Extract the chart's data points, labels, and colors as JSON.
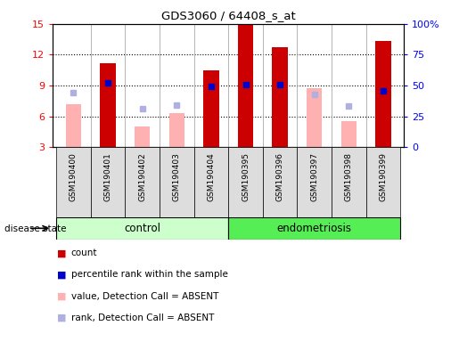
{
  "title": "GDS3060 / 64408_s_at",
  "samples": [
    "GSM190400",
    "GSM190401",
    "GSM190402",
    "GSM190403",
    "GSM190404",
    "GSM190395",
    "GSM190396",
    "GSM190397",
    "GSM190398",
    "GSM190399"
  ],
  "groups": [
    "control",
    "control",
    "control",
    "control",
    "control",
    "endometriosis",
    "endometriosis",
    "endometriosis",
    "endometriosis",
    "endometriosis"
  ],
  "count_values": [
    null,
    11.2,
    null,
    null,
    10.5,
    14.9,
    12.7,
    null,
    null,
    13.3
  ],
  "count_absent_values": [
    7.2,
    null,
    5.0,
    6.3,
    null,
    null,
    null,
    8.7,
    5.5,
    null
  ],
  "percentile_rank": [
    null,
    9.3,
    null,
    null,
    8.9,
    9.1,
    9.1,
    null,
    null,
    8.5
  ],
  "rank_absent": [
    8.3,
    null,
    6.7,
    7.1,
    null,
    null,
    null,
    8.1,
    7.0,
    null
  ],
  "ylim": [
    3,
    15
  ],
  "yticks_left": [
    3,
    6,
    9,
    12,
    15
  ],
  "yticks_right_vals": [
    0,
    25,
    50,
    75,
    100
  ],
  "color_count": "#cc0000",
  "color_count_absent": "#ffb0b0",
  "color_rank": "#0000cc",
  "color_rank_absent": "#b0b0e0",
  "color_control_bg": "#ccffcc",
  "color_endometriosis_bg": "#55ee55",
  "bar_width": 0.45,
  "marker_size": 5
}
